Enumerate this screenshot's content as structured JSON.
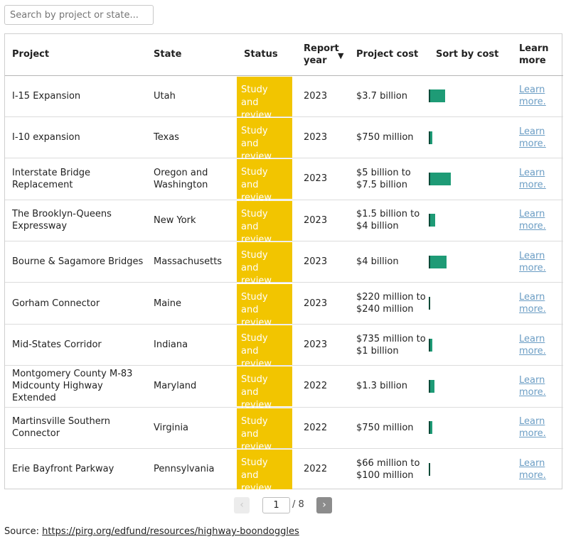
{
  "search": {
    "placeholder": "Search by project or state..."
  },
  "table": {
    "headers": {
      "project": "Project",
      "state": "State",
      "status": "Status",
      "report_year": "Report year",
      "sort_arrow": "▼",
      "project_cost": "Project cost",
      "sort_by_cost": "Sort by cost",
      "learn_more": "Learn more"
    },
    "rows": [
      {
        "project": "I-15 Expansion",
        "state": "Utah",
        "status": "Study and review",
        "year": "2023",
        "cost": "$3.7 billion",
        "bar": 3.7,
        "link": "Learn more."
      },
      {
        "project": "I-10 expansion",
        "state": "Texas",
        "status": "Study and review",
        "year": "2023",
        "cost": "$750 million",
        "bar": 0.75,
        "link": "Learn more."
      },
      {
        "project": "Interstate Bridge Replacement",
        "state": "Oregon and Washington",
        "status": "Study and review",
        "year": "2023",
        "cost": "$5 billion to $7.5 billion",
        "bar": 5,
        "link": "Learn more."
      },
      {
        "project": "The Brooklyn-Queens Expressway",
        "state": "New York",
        "status": "Study and review",
        "year": "2023",
        "cost": "$1.5 billion to $4 billion",
        "bar": 1.5,
        "link": "Learn more."
      },
      {
        "project": "Bourne & Sagamore Bridges",
        "state": "Massachusetts",
        "status": "Study and review",
        "year": "2023",
        "cost": "$4 billion",
        "bar": 4,
        "link": "Learn more."
      },
      {
        "project": "Gorham Connector",
        "state": "Maine",
        "status": "Study and review",
        "year": "2023",
        "cost": "$220 million to $240 million",
        "bar": 0.22,
        "link": "Learn more."
      },
      {
        "project": "Mid-States Corridor",
        "state": "Indiana",
        "status": "Study and review",
        "year": "2023",
        "cost": "$735 million to $1 billion",
        "bar": 0.735,
        "link": "Learn more."
      },
      {
        "project": "Montgomery County M-83 Midcounty Highway Extended",
        "state": "Maryland",
        "status": "Study and review",
        "year": "2022",
        "cost": "$1.3 billion",
        "bar": 1.3,
        "link": "Learn more."
      },
      {
        "project": "Martinsville Southern Connector",
        "state": "Virginia",
        "status": "Study and review",
        "year": "2022",
        "cost": "$750 million",
        "bar": 0.75,
        "link": "Learn more."
      },
      {
        "project": "Erie Bayfront Parkway",
        "state": "Pennsylvania",
        "status": "Study and review",
        "year": "2022",
        "cost": "$66 million to $100 million",
        "bar": 0.066,
        "link": "Learn more."
      }
    ]
  },
  "pagination": {
    "prev": "‹",
    "next": "›",
    "current_page": "1",
    "total": "/ 8"
  },
  "source": {
    "label": "Source:",
    "url": "https://pirg.org/edfund/resources/highway-boondoggles"
  },
  "colors": {
    "status_bg": "#f2c500",
    "bar": "#1e9b76",
    "link": "#6b9dc4"
  }
}
